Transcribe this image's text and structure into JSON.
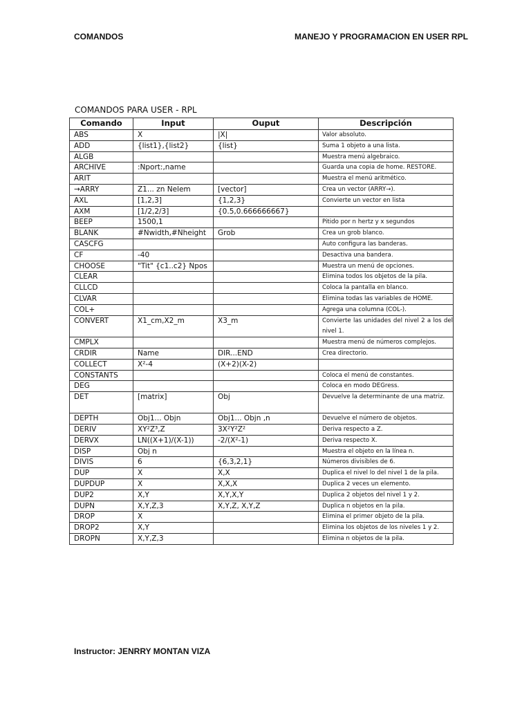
{
  "header": {
    "left": "COMANDOS",
    "right": "MANEJO Y PROGRAMACION EN USER RPL"
  },
  "table": {
    "title": "COMANDOS PARA USER - RPL",
    "columns": [
      "Comando",
      "Input",
      "Ouput",
      "Descripción"
    ],
    "rows": [
      [
        "ABS",
        "X",
        "|X|",
        "Valor absoluto."
      ],
      [
        "ADD",
        "{list1},{list2}",
        "{list}",
        "Suma 1 objeto a una lista."
      ],
      [
        "ALGB",
        "",
        "",
        "Muestra menú algebraico."
      ],
      [
        "ARCHIVE",
        ":Nport:,name",
        "",
        "Guarda una copia de home.  RESTORE."
      ],
      [
        "ARIT",
        "",
        "",
        "Muestra el menú aritmético."
      ],
      [
        "→ARRY",
        "Z1... zn Nelem",
        "[vector]",
        "Crea un vector (ARRY→)."
      ],
      [
        "AXL",
        "[1,2,3]",
        "{1,2,3}",
        "Convierte un vector en lista"
      ],
      [
        "AXM",
        "[1/2,2/3]",
        "{0.5,0.666666667}",
        ""
      ],
      [
        "BEEP",
        "1500,1",
        "",
        "Pitido por n hertz y x segundos"
      ],
      [
        "BLANK",
        "#Nwidth,#Nheight",
        "Grob",
        "Crea un grob blanco."
      ],
      [
        "CASCFG",
        "",
        "",
        "Auto configura las banderas."
      ],
      [
        "CF",
        "-40",
        "",
        "Desactiva una bandera."
      ],
      [
        "CHOOSE",
        "\"Tit\" {c1..c2} Npos",
        "",
        "Muestra un menú de opciones."
      ],
      [
        "CLEAR",
        "",
        "",
        "Elimina todos los objetos de la pila."
      ],
      [
        "CLLCD",
        "",
        "",
        "Coloca la pantalla en blanco."
      ],
      [
        "CLVAR",
        "",
        "",
        "Elimina todas las variables de HOME."
      ],
      [
        "COL+",
        "",
        "",
        "Agrega una columna (COL-)."
      ],
      [
        "CONVERT",
        "X1_cm,X2_m",
        "X3_m",
        "Convierte las unidades del nivel 2 a los del nivel 1."
      ],
      [
        "CMPLX",
        "",
        "",
        "Muestra menú de números complejos."
      ],
      [
        "CRDIR",
        "Name",
        "DIR...END",
        "Crea directorio."
      ],
      [
        "COLLECT",
        "X²-4",
        "(X+2)(X-2)",
        ""
      ],
      [
        "CONSTANTS",
        "",
        "",
        "Coloca el menú de constantes."
      ],
      [
        "DEG",
        "",
        "",
        "Coloca en modo DEGress."
      ],
      [
        "DET",
        "[matrix]",
        "Obj",
        "Devuelve la determinante de una matriz."
      ],
      [
        "DEPTH",
        "Obj1... Objn",
        "Obj1... Objn ,n",
        "Devuelve el número de objetos."
      ],
      [
        "DERIV",
        "XY²Z³,Z",
        "3X²Y²Z²",
        "Deriva respecto a Z."
      ],
      [
        "DERVX",
        "LN((X+1)/(X-1))",
        "-2/(X²-1)",
        " Deriva respecto X."
      ],
      [
        "DISP",
        "Obj  n",
        "",
        "Muestra el objeto en la línea n."
      ],
      [
        "DIVIS",
        "6",
        "{6,3,2,1}",
        "Números divisibles de 6."
      ],
      [
        "DUP",
        "X",
        "X,X",
        "Duplica el nivel lo del nivel 1 de la pila."
      ],
      [
        "DUPDUP",
        "X",
        "X,X,X",
        "Duplica 2 veces un elemento."
      ],
      [
        "DUP2",
        "X,Y",
        "X,Y,X,Y",
        "Duplica 2 objetos del nivel 1 y 2."
      ],
      [
        "DUPN",
        "X,Y,Z,3",
        "X,Y,Z, X,Y,Z",
        "Duplica n objetos en la pila."
      ],
      [
        "DROP",
        "X",
        "",
        "Elimina el primer objeto de la pila."
      ],
      [
        "DROP2",
        "X,Y",
        "",
        "Elimina los objetos de los niveles 1 y 2."
      ],
      [
        "DROPN",
        "X,Y,Z,3",
        "",
        "Elimina n objetos de la pila."
      ]
    ]
  },
  "footer": {
    "instructor": "Instructor: JENRRY MONTAN VIZA"
  }
}
